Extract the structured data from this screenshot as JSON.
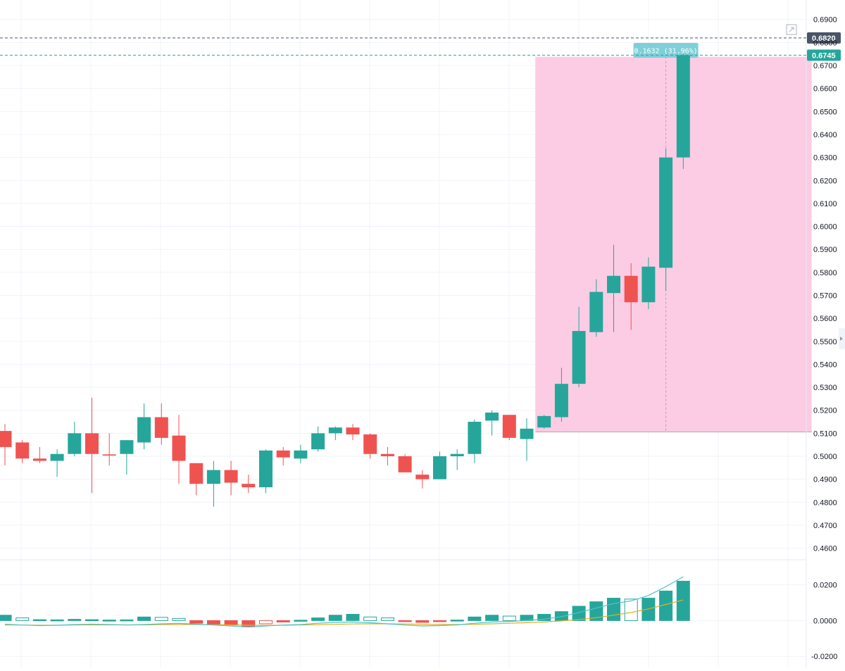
{
  "chart_data": {
    "type": "candlestick",
    "price_axis": {
      "ylim": [
        0.4565,
        0.6985
      ],
      "ticks": [
        "0.6900",
        "0.6800",
        "0.6700",
        "0.6600",
        "0.6500",
        "0.6400",
        "0.6300",
        "0.6200",
        "0.6100",
        "0.6000",
        "0.5900",
        "0.5800",
        "0.5700",
        "0.5600",
        "0.5500",
        "0.5400",
        "0.5300",
        "0.5200",
        "0.5100",
        "0.5000",
        "0.4900",
        "0.4800",
        "0.4700",
        "0.4600"
      ],
      "price_tags": [
        {
          "label": "0.6820",
          "value": 0.682,
          "color": "#4a5467",
          "line_color": "#4a5467"
        },
        {
          "label": "0.6745",
          "value": 0.6745,
          "color": "#26a69a",
          "line_color": "#26a69a"
        }
      ]
    },
    "candles": [
      {
        "o": 0.511,
        "h": 0.514,
        "l": 0.496,
        "c": 0.504
      },
      {
        "o": 0.506,
        "h": 0.507,
        "l": 0.497,
        "c": 0.499
      },
      {
        "o": 0.499,
        "h": 0.504,
        "l": 0.497,
        "c": 0.498
      },
      {
        "o": 0.498,
        "h": 0.503,
        "l": 0.491,
        "c": 0.501
      },
      {
        "o": 0.501,
        "h": 0.515,
        "l": 0.5,
        "c": 0.51
      },
      {
        "o": 0.51,
        "h": 0.5255,
        "l": 0.484,
        "c": 0.501
      },
      {
        "o": 0.5008,
        "h": 0.51,
        "l": 0.496,
        "c": 0.5003
      },
      {
        "o": 0.501,
        "h": 0.507,
        "l": 0.492,
        "c": 0.507
      },
      {
        "o": 0.506,
        "h": 0.523,
        "l": 0.503,
        "c": 0.517
      },
      {
        "o": 0.517,
        "h": 0.523,
        "l": 0.505,
        "c": 0.508
      },
      {
        "o": 0.509,
        "h": 0.518,
        "l": 0.488,
        "c": 0.498
      },
      {
        "o": 0.497,
        "h": 0.497,
        "l": 0.483,
        "c": 0.488
      },
      {
        "o": 0.488,
        "h": 0.498,
        "l": 0.478,
        "c": 0.494
      },
      {
        "o": 0.494,
        "h": 0.498,
        "l": 0.483,
        "c": 0.4885
      },
      {
        "o": 0.488,
        "h": 0.492,
        "l": 0.484,
        "c": 0.4865
      },
      {
        "o": 0.4865,
        "h": 0.503,
        "l": 0.484,
        "c": 0.5025
      },
      {
        "o": 0.5025,
        "h": 0.504,
        "l": 0.496,
        "c": 0.4995
      },
      {
        "o": 0.499,
        "h": 0.505,
        "l": 0.497,
        "c": 0.5025
      },
      {
        "o": 0.503,
        "h": 0.513,
        "l": 0.502,
        "c": 0.51
      },
      {
        "o": 0.51,
        "h": 0.513,
        "l": 0.507,
        "c": 0.5125
      },
      {
        "o": 0.5125,
        "h": 0.514,
        "l": 0.507,
        "c": 0.5095
      },
      {
        "o": 0.5095,
        "h": 0.51,
        "l": 0.499,
        "c": 0.501
      },
      {
        "o": 0.501,
        "h": 0.504,
        "l": 0.496,
        "c": 0.5
      },
      {
        "o": 0.5,
        "h": 0.501,
        "l": 0.493,
        "c": 0.493
      },
      {
        "o": 0.492,
        "h": 0.494,
        "l": 0.486,
        "c": 0.49
      },
      {
        "o": 0.49,
        "h": 0.502,
        "l": 0.49,
        "c": 0.5
      },
      {
        "o": 0.5,
        "h": 0.503,
        "l": 0.494,
        "c": 0.501
      },
      {
        "o": 0.501,
        "h": 0.516,
        "l": 0.497,
        "c": 0.515
      },
      {
        "o": 0.5155,
        "h": 0.52,
        "l": 0.509,
        "c": 0.519
      },
      {
        "o": 0.518,
        "h": 0.518,
        "l": 0.507,
        "c": 0.508
      },
      {
        "o": 0.5075,
        "h": 0.5165,
        "l": 0.498,
        "c": 0.512
      },
      {
        "o": 0.5125,
        "h": 0.518,
        "l": 0.512,
        "c": 0.5175
      },
      {
        "o": 0.517,
        "h": 0.5385,
        "l": 0.515,
        "c": 0.5315
      },
      {
        "o": 0.5315,
        "h": 0.565,
        "l": 0.53,
        "c": 0.5545
      },
      {
        "o": 0.554,
        "h": 0.577,
        "l": 0.552,
        "c": 0.5715
      },
      {
        "o": 0.571,
        "h": 0.592,
        "l": 0.554,
        "c": 0.5785
      },
      {
        "o": 0.5785,
        "h": 0.584,
        "l": 0.555,
        "c": 0.567
      },
      {
        "o": 0.567,
        "h": 0.5865,
        "l": 0.564,
        "c": 0.5825
      },
      {
        "o": 0.582,
        "h": 0.634,
        "l": 0.572,
        "c": 0.63
      },
      {
        "o": 0.63,
        "h": 0.675,
        "l": 0.625,
        "c": 0.6745
      }
    ],
    "measurement": {
      "label": "0.1632 (31.96%)",
      "top": 0.6738,
      "bottom": 0.5106,
      "start_index": 31,
      "end_index": 46,
      "marker_index": 38,
      "fill_color": "#fcc9e3"
    },
    "indicator_pane": {
      "ylim": [
        -0.0262,
        0.032
      ],
      "ticks": [
        "0.0200",
        "0.0000",
        "-0.0200"
      ],
      "histogram": [
        0.003,
        0.0015,
        0.0005,
        0.0004,
        0.0007,
        0.0005,
        0.0003,
        0.0004,
        0.002,
        0.0018,
        0.0012,
        -0.0015,
        -0.002,
        -0.0025,
        -0.0035,
        -0.0018,
        -0.0008,
        0.0002,
        0.0015,
        0.003,
        0.0035,
        0.002,
        0.0015,
        -0.0005,
        -0.001,
        -0.0005,
        0.0003,
        0.002,
        0.003,
        0.0025,
        0.003,
        0.0035,
        0.005,
        0.008,
        0.0105,
        0.0125,
        0.012,
        0.0125,
        0.0165,
        0.022
      ],
      "histogram_hollow": [
        false,
        true,
        false,
        false,
        false,
        false,
        false,
        false,
        false,
        true,
        true,
        false,
        false,
        false,
        false,
        true,
        false,
        false,
        false,
        false,
        false,
        true,
        true,
        false,
        false,
        false,
        false,
        false,
        false,
        true,
        false,
        false,
        false,
        false,
        false,
        false,
        true,
        false,
        false,
        false
      ],
      "macd_line": [
        -0.002,
        -0.0025,
        -0.0028,
        -0.0026,
        -0.0022,
        -0.002,
        -0.0022,
        -0.0025,
        -0.0022,
        -0.0018,
        -0.0016,
        -0.002,
        -0.0025,
        -0.003,
        -0.0036,
        -0.003,
        -0.0025,
        -0.0022,
        -0.0015,
        -0.001,
        -0.0008,
        -0.0012,
        -0.0018,
        -0.0025,
        -0.003,
        -0.0028,
        -0.0024,
        -0.0015,
        -0.0008,
        -0.0005,
        0.0,
        0.0008,
        0.0022,
        0.0045,
        0.007,
        0.0095,
        0.011,
        0.014,
        0.019,
        0.0245
      ],
      "signal_line": [
        -0.0025,
        -0.0025,
        -0.0026,
        -0.0026,
        -0.0025,
        -0.0024,
        -0.0024,
        -0.0024,
        -0.0024,
        -0.0023,
        -0.0022,
        -0.0022,
        -0.0023,
        -0.0024,
        -0.0026,
        -0.0027,
        -0.0026,
        -0.0025,
        -0.0023,
        -0.0021,
        -0.0019,
        -0.0018,
        -0.0018,
        -0.0019,
        -0.0021,
        -0.0022,
        -0.0022,
        -0.0021,
        -0.0018,
        -0.0015,
        -0.0012,
        -0.0008,
        -0.0002,
        0.0006,
        0.0016,
        0.003,
        0.0045,
        0.0065,
        0.009,
        0.0115
      ],
      "colors": {
        "positive": "#26a69a",
        "negative": "#ef5350",
        "macd": "#4fc3c8",
        "signal": "#e0b020"
      }
    },
    "colors": {
      "up": "#26a69a",
      "down": "#ef5350",
      "grid": "#f0f3fa",
      "measure_tag": "#7ecfd8"
    },
    "grid": true
  }
}
